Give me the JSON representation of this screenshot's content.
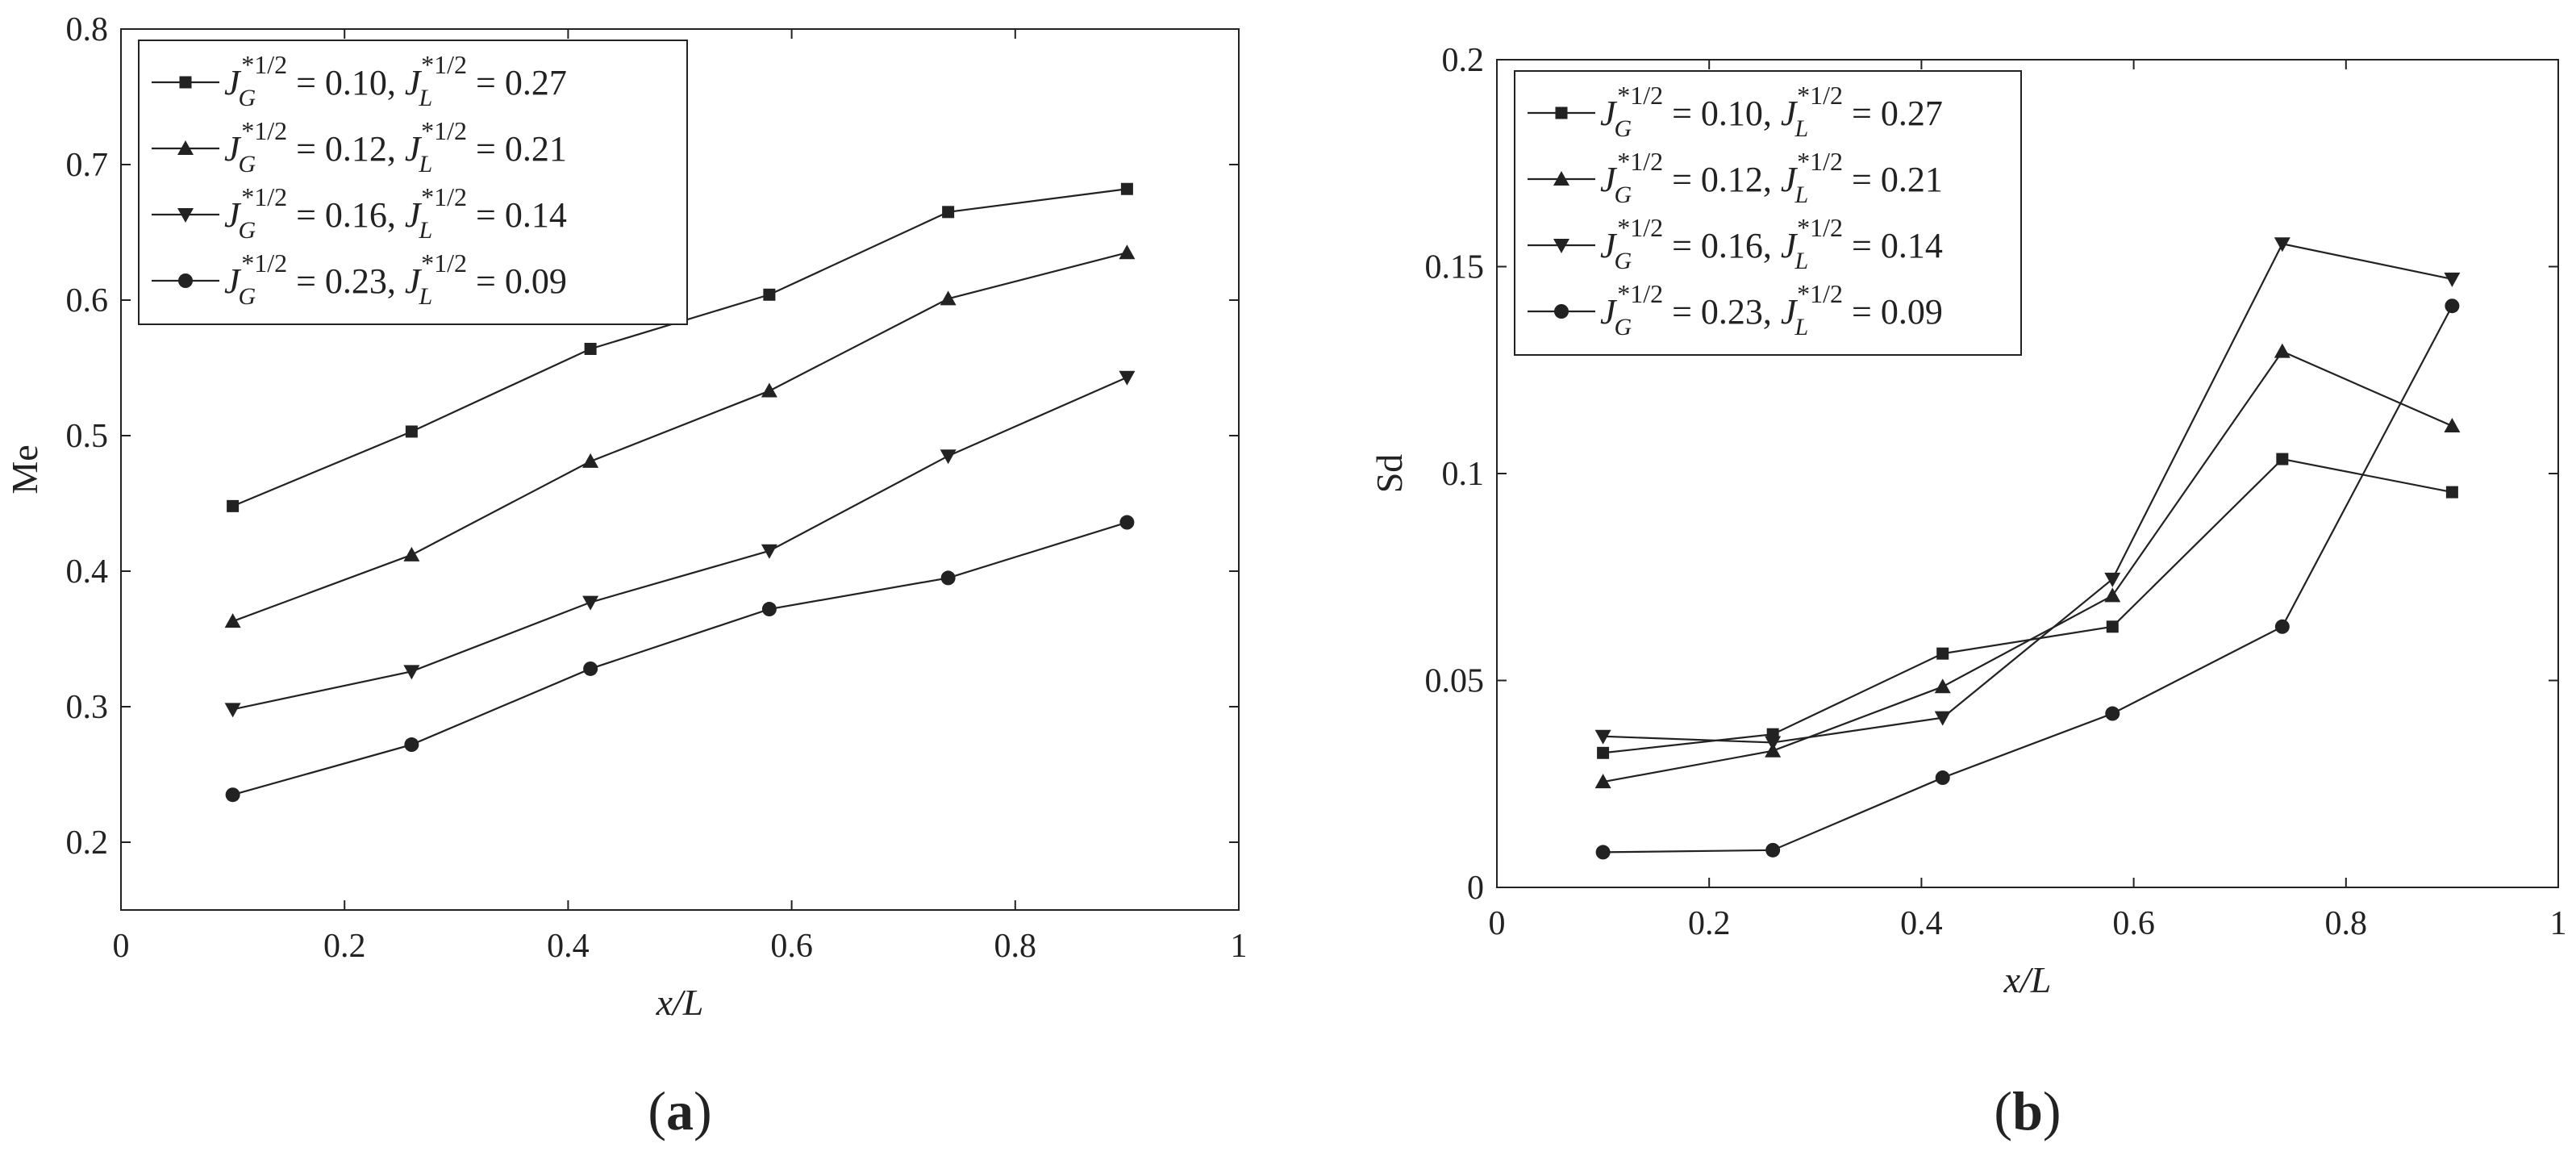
{
  "chart_data": [
    {
      "type": "line",
      "panel_label": "(a)",
      "xlabel": "x/L",
      "ylabel": "Me",
      "xlim": [
        0,
        1
      ],
      "ylim": [
        0.15,
        0.8
      ],
      "xticks": [
        0,
        0.2,
        0.4,
        0.6,
        0.8,
        1
      ],
      "xtick_labels": [
        "0",
        "0.2",
        "0.4",
        "0.6",
        "0.8",
        "1"
      ],
      "yticks": [
        0.2,
        0.3,
        0.4,
        0.5,
        0.6,
        0.7,
        0.8
      ],
      "ytick_labels": [
        "0.2",
        "0.3",
        "0.4",
        "0.5",
        "0.6",
        "0.7",
        "0.8"
      ],
      "grid": false,
      "legend_position": "top-left",
      "x": [
        0.1,
        0.26,
        0.42,
        0.58,
        0.74,
        0.9
      ],
      "series": [
        {
          "marker": "square",
          "jg": "0.10",
          "jl": "0.27",
          "values": [
            0.448,
            0.503,
            0.564,
            0.604,
            0.665,
            0.682
          ]
        },
        {
          "marker": "triangle-up",
          "jg": "0.12",
          "jl": "0.21",
          "values": [
            0.363,
            0.412,
            0.481,
            0.533,
            0.601,
            0.635
          ]
        },
        {
          "marker": "triangle-down",
          "jg": "0.16",
          "jl": "0.14",
          "values": [
            0.298,
            0.326,
            0.377,
            0.415,
            0.485,
            0.543
          ]
        },
        {
          "marker": "circle",
          "jg": "0.23",
          "jl": "0.09",
          "values": [
            0.235,
            0.272,
            0.328,
            0.372,
            0.395,
            0.436
          ]
        }
      ]
    },
    {
      "type": "line",
      "panel_label": "(b)",
      "xlabel": "x/L",
      "ylabel": "Sd",
      "xlim": [
        0,
        1
      ],
      "ylim": [
        0,
        0.2
      ],
      "xticks": [
        0,
        0.2,
        0.4,
        0.6,
        0.8,
        1
      ],
      "xtick_labels": [
        "0",
        "0.2",
        "0.4",
        "0.6",
        "0.8",
        "1"
      ],
      "yticks": [
        0,
        0.05,
        0.1,
        0.15,
        0.2
      ],
      "ytick_labels": [
        "0",
        "0.05",
        "0.1",
        "0.15",
        "0.2"
      ],
      "grid": false,
      "legend_position": "top-left",
      "x": [
        0.1,
        0.26,
        0.42,
        0.58,
        0.74,
        0.9
      ],
      "series": [
        {
          "marker": "square",
          "jg": "0.10",
          "jl": "0.27",
          "values": [
            0.0325,
            0.037,
            0.0565,
            0.063,
            0.1035,
            0.0955
          ]
        },
        {
          "marker": "triangle-up",
          "jg": "0.12",
          "jl": "0.21",
          "values": [
            0.0255,
            0.033,
            0.0485,
            0.0705,
            0.1295,
            0.1115
          ]
        },
        {
          "marker": "triangle-down",
          "jg": "0.16",
          "jl": "0.14",
          "values": [
            0.0365,
            0.035,
            0.041,
            0.0745,
            0.1555,
            0.147
          ]
        },
        {
          "marker": "circle",
          "jg": "0.23",
          "jl": "0.09",
          "values": [
            0.0085,
            0.009,
            0.0265,
            0.042,
            0.063,
            0.1405
          ]
        }
      ]
    }
  ]
}
